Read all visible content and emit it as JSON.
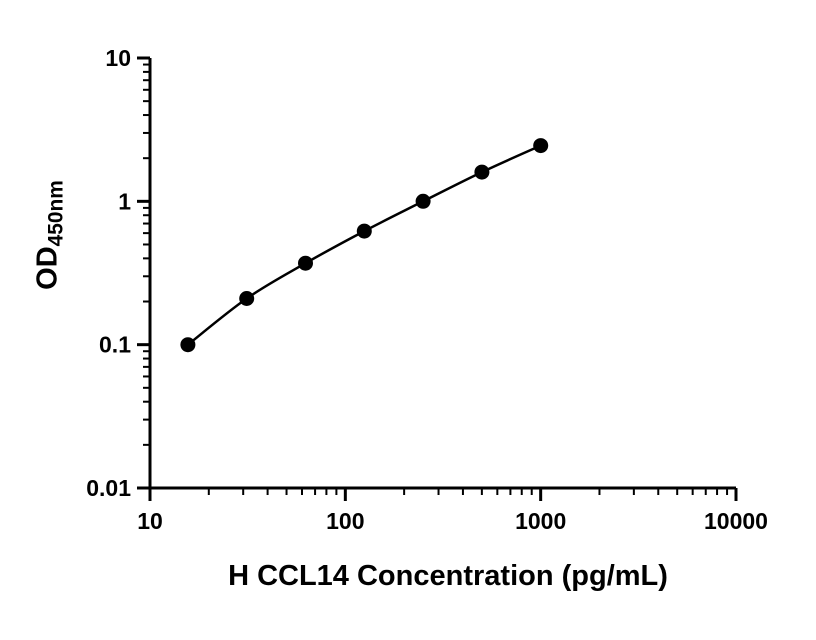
{
  "figure": {
    "background_color": "#ffffff",
    "axis_color": "#000000"
  },
  "chart_data": {
    "type": "scatter",
    "x": [
      15.625,
      31.25,
      62.5,
      125,
      250,
      500,
      1000
    ],
    "y": [
      0.1,
      0.21,
      0.37,
      0.62,
      1.0,
      1.6,
      2.45
    ],
    "title": "",
    "xlabel": "H CCL14 Concentration (pg/mL)",
    "ylabel": "OD450nm",
    "ylabel_main": "OD",
    "ylabel_sub": "450nm",
    "xscale": "log",
    "yscale": "log",
    "xlim": [
      10,
      10000
    ],
    "ylim": [
      0.01,
      10
    ],
    "x_ticks": [
      10,
      100,
      1000,
      10000
    ],
    "x_tick_labels": [
      "10",
      "100",
      "1000",
      "10000"
    ],
    "y_ticks": [
      0.01,
      0.1,
      1,
      10
    ],
    "y_tick_labels": [
      "0.01",
      "0.1",
      "1",
      "10"
    ],
    "grid": false,
    "legend": false,
    "marker_color": "#000000",
    "line_color": "#000000"
  }
}
